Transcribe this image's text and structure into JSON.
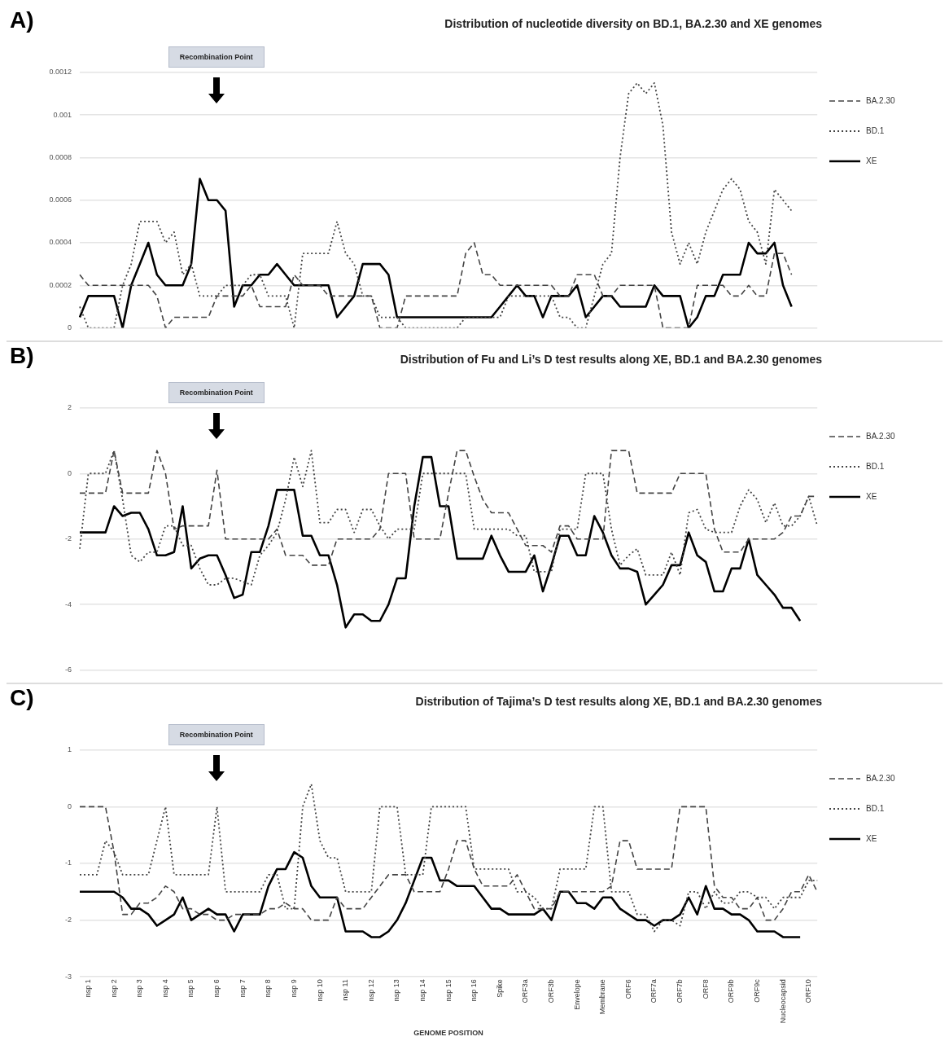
{
  "chart_data": [
    {
      "type": "line",
      "title": "Distribution of nucleotide diversity on BD.1, BA.2.30 and XE genomes",
      "annotations": [
        "A)",
        "Recombination Point"
      ],
      "categories": [
        null,
        null,
        null,
        null,
        null,
        null,
        null,
        null,
        null,
        null,
        null,
        null,
        null,
        null,
        null,
        null,
        null,
        null,
        null,
        null,
        null,
        null,
        null,
        null,
        null,
        null,
        null,
        null,
        null,
        null,
        null,
        null,
        null,
        null,
        null,
        null,
        null,
        null,
        null,
        null,
        null,
        null,
        null,
        null,
        null,
        null,
        null,
        null,
        null,
        null,
        null,
        null,
        null,
        null,
        null,
        null,
        null,
        null,
        null,
        null,
        null,
        null,
        null,
        null,
        null,
        null,
        null,
        null,
        null,
        null,
        null,
        null,
        null,
        null,
        null,
        null,
        null,
        null,
        null,
        null,
        null,
        null,
        null,
        null,
        null,
        null,
        null
      ],
      "ylim": [
        0,
        0.0012
      ],
      "yticks": [
        0,
        0.0002,
        0.0004,
        0.0006,
        0.0008,
        0.001,
        0.0012
      ],
      "grid": "y",
      "legend": "right",
      "series": [
        {
          "name": "BA.2.30",
          "color": "#444444",
          "line_style": "dashed",
          "values": [
            0.00025,
            0.0002,
            0.0002,
            0.0002,
            0.0002,
            0.0002,
            0.0002,
            0.0002,
            0.0002,
            0.00015,
            0,
            5e-05,
            5e-05,
            5e-05,
            5e-05,
            5e-05,
            0.00015,
            0.00015,
            0.00015,
            0.00015,
            0.0002,
            0.0001,
            0.0001,
            0.0001,
            0.0001,
            0.00025,
            0.0002,
            0.0002,
            0.0002,
            0.00015,
            0.00015,
            0.00015,
            0.00015,
            0.00015,
            0.00015,
            0,
            0,
            0,
            0.00015,
            0.00015,
            0.00015,
            0.00015,
            0.00015,
            0.00015,
            0.00015,
            0.00035,
            0.0004,
            0.00025,
            0.00025,
            0.0002,
            0.0002,
            0.0002,
            0.0002,
            0.0002,
            0.0002,
            0.0002,
            0.00015,
            0.00015,
            0.00025,
            0.00025,
            0.00025,
            0.00015,
            0.00015,
            0.0002,
            0.0002,
            0.0002,
            0.0002,
            0.0002,
            0,
            0,
            0,
            0,
            0.0002,
            0.0002,
            0.0002,
            0.0002,
            0.00015,
            0.00015,
            0.0002,
            0.00015,
            0.00015,
            0.00035,
            0.00035,
            0.00025,
            null,
            null,
            null
          ]
        },
        {
          "name": "BD.1",
          "color": "#444444",
          "line_style": "dotted",
          "values": [
            0.0001,
            0,
            0,
            0,
            0,
            0.0002,
            0.0003,
            0.0005,
            0.0005,
            0.0005,
            0.0004,
            0.00045,
            0.00025,
            0.0003,
            0.00015,
            0.00015,
            0.00015,
            0.0002,
            0.0002,
            0.0002,
            0.00025,
            0.00025,
            0.00015,
            0.00015,
            0.00015,
            0,
            0.00035,
            0.00035,
            0.00035,
            0.00035,
            0.0005,
            0.00035,
            0.0003,
            0.00015,
            0.00015,
            5e-05,
            5e-05,
            5e-05,
            0,
            0,
            0,
            0,
            0,
            0,
            0,
            5e-05,
            5e-05,
            5e-05,
            5e-05,
            5e-05,
            0.00015,
            0.00015,
            0.00015,
            0.00015,
            0.00015,
            0.00015,
            5e-05,
            5e-05,
            0,
            0,
            0.00015,
            0.0003,
            0.00035,
            0.0008,
            0.0011,
            0.00115,
            0.0011,
            0.00115,
            0.00095,
            0.00045,
            0.0003,
            0.0004,
            0.0003,
            0.00045,
            0.00055,
            0.00065,
            0.0007,
            0.00065,
            0.0005,
            0.00045,
            0.0003,
            0.00065,
            0.0006,
            0.00055,
            null,
            null,
            null
          ]
        },
        {
          "name": "XE",
          "color": "#000000",
          "line_style": "solid",
          "values": [
            5e-05,
            0.00015,
            0.00015,
            0.00015,
            0.00015,
            0,
            0.0002,
            0.0003,
            0.0004,
            0.00025,
            0.0002,
            0.0002,
            0.0002,
            0.0003,
            0.0007,
            0.0006,
            0.0006,
            0.00055,
            0.0001,
            0.0002,
            0.0002,
            0.00025,
            0.00025,
            0.0003,
            0.00025,
            0.0002,
            0.0002,
            0.0002,
            0.0002,
            0.0002,
            5e-05,
            0.0001,
            0.00015,
            0.0003,
            0.0003,
            0.0003,
            0.00025,
            5e-05,
            5e-05,
            5e-05,
            5e-05,
            5e-05,
            5e-05,
            5e-05,
            5e-05,
            5e-05,
            5e-05,
            5e-05,
            5e-05,
            0.0001,
            0.00015,
            0.0002,
            0.00015,
            0.00015,
            5e-05,
            0.00015,
            0.00015,
            0.00015,
            0.0002,
            5e-05,
            0.0001,
            0.00015,
            0.00015,
            0.0001,
            0.0001,
            0.0001,
            0.0001,
            0.0002,
            0.00015,
            0.00015,
            0.00015,
            0,
            5e-05,
            0.00015,
            0.00015,
            0.00025,
            0.00025,
            0.00025,
            0.0004,
            0.00035,
            0.00035,
            0.0004,
            0.0002,
            0.0001,
            null,
            null,
            null
          ]
        }
      ]
    },
    {
      "type": "line",
      "title": "Distribution of Fu and Li’s D test results along XE, BD.1 and BA.2.30 genomes",
      "annotations": [
        "B)",
        "Recombination Point"
      ],
      "categories": [
        null,
        null,
        null,
        null,
        null,
        null,
        null,
        null,
        null,
        null,
        null,
        null,
        null,
        null,
        null,
        null,
        null,
        null,
        null,
        null,
        null,
        null,
        null,
        null,
        null,
        null,
        null,
        null,
        null,
        null,
        null,
        null,
        null,
        null,
        null,
        null,
        null,
        null,
        null,
        null,
        null,
        null,
        null,
        null,
        null,
        null,
        null,
        null,
        null,
        null,
        null,
        null,
        null,
        null,
        null,
        null,
        null,
        null,
        null,
        null,
        null,
        null,
        null,
        null,
        null,
        null,
        null,
        null,
        null,
        null,
        null,
        null,
        null,
        null,
        null,
        null,
        null,
        null,
        null,
        null,
        null,
        null,
        null,
        null,
        null,
        null,
        null
      ],
      "ylim": [
        -6,
        2
      ],
      "yticks": [
        -6,
        -4,
        -2,
        0,
        2
      ],
      "grid": "y",
      "legend": "right",
      "series": [
        {
          "name": "BA.2.30",
          "color": "#444444",
          "line_style": "dashed",
          "values": [
            -0.6,
            -0.6,
            -0.6,
            -0.6,
            0.7,
            -0.6,
            -0.6,
            -0.6,
            -0.6,
            0.7,
            0,
            -1.7,
            -1.6,
            -1.6,
            -1.6,
            -1.6,
            0.1,
            -2,
            -2,
            -2,
            -2,
            -2,
            -2,
            -1.7,
            -2.5,
            -2.5,
            -2.5,
            -2.8,
            -2.8,
            -2.8,
            -2,
            -2,
            -2,
            -2,
            -2,
            -1.7,
            0,
            0,
            0,
            -2,
            -2,
            -2,
            -2,
            -0.6,
            0.7,
            0.7,
            -0.1,
            -0.8,
            -1.2,
            -1.2,
            -1.2,
            -1.7,
            -2.2,
            -2.2,
            -2.2,
            -2.4,
            -1.6,
            -1.6,
            -2,
            -2,
            -2,
            -2,
            0.7,
            0.7,
            0.7,
            -0.6,
            -0.6,
            -0.6,
            -0.6,
            -0.6,
            0,
            0,
            0,
            0,
            -1.7,
            -2.4,
            -2.4,
            -2.4,
            -2,
            -2,
            -2,
            -2,
            -1.8,
            -1.3,
            -1.3,
            -0.7,
            -0.7
          ]
        },
        {
          "name": "BD.1",
          "color": "#444444",
          "line_style": "dotted",
          "values": [
            -2.3,
            0,
            0,
            0,
            0.7,
            -0.8,
            -2.5,
            -2.7,
            -2.4,
            -2.4,
            -1.6,
            -1.6,
            -2.2,
            -2.2,
            -2.9,
            -3.4,
            -3.4,
            -3.2,
            -3.2,
            -3.3,
            -3.4,
            -2.5,
            -2.2,
            -1.8,
            -0.8,
            0.5,
            -0.4,
            0.7,
            -1.5,
            -1.5,
            -1.1,
            -1.1,
            -1.8,
            -1.1,
            -1.1,
            -1.6,
            -2,
            -1.7,
            -1.7,
            -1.7,
            0,
            0,
            0,
            0,
            0,
            0,
            -1.7,
            -1.7,
            -1.7,
            -1.7,
            -1.7,
            -1.9,
            -1.9,
            -3,
            -3,
            -3,
            -1.7,
            -1.7,
            -1.7,
            0,
            0,
            0,
            -1.7,
            -2.8,
            -2.5,
            -2.3,
            -3.1,
            -3.1,
            -3.1,
            -2.4,
            -3.1,
            -1.2,
            -1.1,
            -1.7,
            -1.8,
            -1.8,
            -1.8,
            -1,
            -0.5,
            -0.8,
            -1.5,
            -0.9,
            -1.6,
            -1.6,
            -1.3,
            -0.7,
            -1.6
          ]
        },
        {
          "name": "XE",
          "color": "#000000",
          "line_style": "solid",
          "values": [
            -1.8,
            -1.8,
            -1.8,
            -1.8,
            -1,
            -1.3,
            -1.2,
            -1.2,
            -1.7,
            -2.5,
            -2.5,
            -2.4,
            -1,
            -2.9,
            -2.6,
            -2.5,
            -2.5,
            -3.1,
            -3.8,
            -3.7,
            -2.4,
            -2.4,
            -1.6,
            -0.5,
            -0.5,
            -0.5,
            -1.9,
            -1.9,
            -2.5,
            -2.5,
            -3.4,
            -4.7,
            -4.3,
            -4.3,
            -4.5,
            -4.5,
            -4,
            -3.2,
            -3.2,
            -1,
            0.5,
            0.5,
            -1,
            -1,
            -2.6,
            -2.6,
            -2.6,
            -2.6,
            -1.9,
            -2.5,
            -3,
            -3,
            -3,
            -2.5,
            -3.6,
            -2.8,
            -1.9,
            -1.9,
            -2.5,
            -2.5,
            -1.3,
            -1.8,
            -2.5,
            -2.9,
            -2.9,
            -3,
            -4,
            -3.7,
            -3.4,
            -2.8,
            -2.8,
            -1.8,
            -2.5,
            -2.7,
            -3.6,
            -3.6,
            -2.9,
            -2.9,
            -2,
            -3.1,
            -3.4,
            -3.7,
            -4.1,
            -4.1,
            -4.5,
            null,
            null
          ]
        }
      ]
    },
    {
      "type": "line",
      "title": "Distribution of Tajima’s D test results along XE, BD.1 and BA.2.30 genomes",
      "xlabel": "GENOME POSITION",
      "annotations": [
        "C)",
        "Recombination Point"
      ],
      "categories": [
        null,
        "nsp 1",
        null,
        null,
        "nsp 2",
        null,
        null,
        "nsp 3",
        null,
        null,
        "nsp 4",
        null,
        null,
        "nsp 5",
        null,
        null,
        "nsp 6",
        null,
        null,
        "nsp 7",
        null,
        null,
        "nsp 8",
        null,
        null,
        "nsp 9",
        null,
        null,
        "nsp 10",
        null,
        null,
        "nsp 11",
        null,
        null,
        "nsp 12",
        null,
        null,
        "nsp 13",
        null,
        null,
        "nsp 14",
        null,
        null,
        "nsp 15",
        null,
        null,
        "nsp 16",
        null,
        null,
        "Spike",
        null,
        null,
        "ORF3a",
        null,
        null,
        "ORF3b",
        null,
        null,
        "Envelope",
        null,
        null,
        "Membrane",
        null,
        null,
        "ORF6",
        null,
        null,
        "ORF7a",
        null,
        null,
        "ORF7b",
        null,
        null,
        "ORF8",
        null,
        null,
        "ORF9b",
        null,
        null,
        "ORF9c",
        null,
        null,
        "Nucleocapsid",
        null,
        null,
        "ORF10",
        null
      ],
      "ylim": [
        -3,
        1
      ],
      "yticks": [
        -3,
        -2,
        -1,
        0,
        1
      ],
      "grid": "y",
      "legend": "right",
      "series": [
        {
          "name": "BA.2.30",
          "color": "#444444",
          "line_style": "dashed",
          "values": [
            0,
            0,
            0,
            0,
            -0.8,
            -1.9,
            -1.9,
            -1.7,
            -1.7,
            -1.6,
            -1.4,
            -1.5,
            -1.8,
            -1.8,
            -1.9,
            -1.9,
            -2,
            -2,
            -1.9,
            -1.9,
            -1.9,
            -1.9,
            -1.8,
            -1.8,
            -1.7,
            -1.8,
            -1.8,
            -2,
            -2,
            -2,
            -1.6,
            -1.8,
            -1.8,
            -1.8,
            -1.6,
            -1.4,
            -1.2,
            -1.2,
            -1.2,
            -1.5,
            -1.5,
            -1.5,
            -1.5,
            -1.1,
            -0.6,
            -0.6,
            -1.1,
            -1.4,
            -1.4,
            -1.4,
            -1.4,
            -1.2,
            -1.5,
            -1.8,
            -1.8,
            -1.8,
            -1.5,
            -1.5,
            -1.5,
            -1.5,
            -1.5,
            -1.5,
            -1.4,
            -0.6,
            -0.6,
            -1.1,
            -1.1,
            -1.1,
            -1.1,
            -1.1,
            0,
            0,
            0,
            0,
            -1.4,
            -1.6,
            -1.6,
            -1.8,
            -1.8,
            -1.6,
            -2,
            -2,
            -1.8,
            -1.5,
            -1.5,
            -1.2,
            -1.5
          ]
        },
        {
          "name": "BD.1",
          "color": "#444444",
          "line_style": "dotted",
          "values": [
            -1.2,
            -1.2,
            -1.2,
            -0.6,
            -0.8,
            -1.2,
            -1.2,
            -1.2,
            -1.2,
            -0.6,
            0,
            -1.2,
            -1.2,
            -1.2,
            -1.2,
            -1.2,
            0,
            -1.5,
            -1.5,
            -1.5,
            -1.5,
            -1.5,
            -1.2,
            -1.2,
            -1.8,
            -1.8,
            0,
            0.4,
            -0.6,
            -0.9,
            -0.9,
            -1.5,
            -1.5,
            -1.5,
            -1.5,
            0,
            0,
            0,
            -1.2,
            -1.2,
            -1.2,
            0,
            0,
            0,
            0,
            0,
            -1.1,
            -1.1,
            -1.1,
            -1.1,
            -1.1,
            -1.5,
            -1.5,
            -1.6,
            -1.8,
            -1.8,
            -1.1,
            -1.1,
            -1.1,
            -1.1,
            0,
            0,
            -1.5,
            -1.5,
            -1.5,
            -1.9,
            -1.9,
            -2.2,
            -2,
            -2,
            -2.1,
            -1.5,
            -1.5,
            -1.8,
            -1.5,
            -1.7,
            -1.7,
            -1.5,
            -1.5,
            -1.6,
            -1.6,
            -1.8,
            -1.6,
            -1.6,
            -1.6,
            -1.3,
            -1.3
          ]
        },
        {
          "name": "XE",
          "color": "#000000",
          "line_style": "solid",
          "values": [
            -1.5,
            -1.5,
            -1.5,
            -1.5,
            -1.5,
            -1.6,
            -1.8,
            -1.8,
            -1.9,
            -2.1,
            -2,
            -1.9,
            -1.6,
            -2,
            -1.9,
            -1.8,
            -1.9,
            -1.9,
            -2.2,
            -1.9,
            -1.9,
            -1.9,
            -1.4,
            -1.1,
            -1.1,
            -0.8,
            -0.9,
            -1.4,
            -1.6,
            -1.6,
            -1.6,
            -2.2,
            -2.2,
            -2.2,
            -2.3,
            -2.3,
            -2.2,
            -2,
            -1.7,
            -1.3,
            -0.9,
            -0.9,
            -1.3,
            -1.3,
            -1.4,
            -1.4,
            -1.4,
            -1.6,
            -1.8,
            -1.8,
            -1.9,
            -1.9,
            -1.9,
            -1.9,
            -1.8,
            -2,
            -1.5,
            -1.5,
            -1.7,
            -1.7,
            -1.8,
            -1.6,
            -1.6,
            -1.8,
            -1.9,
            -2,
            -2,
            -2.1,
            -2,
            -2,
            -1.9,
            -1.6,
            -1.9,
            -1.4,
            -1.8,
            -1.8,
            -1.9,
            -1.9,
            -2,
            -2.2,
            -2.2,
            -2.2,
            -2.3,
            -2.3,
            -2.3,
            null,
            null
          ]
        }
      ]
    }
  ]
}
